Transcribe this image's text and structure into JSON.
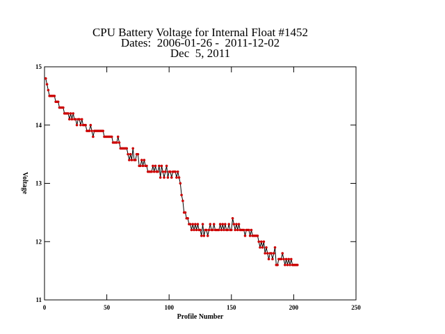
{
  "chart_data": {
    "type": "line",
    "title": [
      "CPU Battery Voltage for Internal Float #1452",
      "Dates:  2006-01-26 -  2011-12-02",
      "Dec  5, 2011"
    ],
    "x_label": "Profile Number",
    "y_label": "Voltage",
    "xlim": [
      0,
      250
    ],
    "xticks": [
      0,
      50,
      100,
      150,
      200,
      250
    ],
    "ylim": [
      11,
      15
    ],
    "yticks": [
      11,
      12,
      13,
      14,
      15
    ],
    "line_color": "#000000",
    "marker_color": "#cc0000",
    "x": [
      1,
      2,
      3,
      4,
      5,
      6,
      7,
      8,
      9,
      10,
      11,
      12,
      13,
      14,
      15,
      16,
      17,
      18,
      19,
      20,
      21,
      22,
      23,
      24,
      25,
      26,
      27,
      28,
      29,
      30,
      31,
      32,
      33,
      34,
      35,
      36,
      37,
      38,
      39,
      40,
      41,
      42,
      43,
      44,
      45,
      46,
      47,
      48,
      49,
      50,
      51,
      52,
      53,
      54,
      55,
      56,
      57,
      58,
      59,
      60,
      61,
      62,
      63,
      64,
      65,
      66,
      67,
      68,
      69,
      70,
      71,
      72,
      73,
      74,
      75,
      76,
      77,
      78,
      79,
      80,
      81,
      82,
      83,
      84,
      85,
      86,
      87,
      88,
      89,
      90,
      91,
      92,
      93,
      94,
      95,
      96,
      97,
      98,
      99,
      100,
      101,
      102,
      103,
      104,
      105,
      106,
      107,
      108,
      109,
      110,
      111,
      112,
      113,
      114,
      115,
      116,
      117,
      118,
      119,
      120,
      121,
      122,
      123,
      124,
      125,
      126,
      127,
      128,
      129,
      130,
      131,
      132,
      133,
      134,
      135,
      136,
      137,
      138,
      139,
      140,
      141,
      142,
      143,
      144,
      145,
      146,
      147,
      148,
      149,
      150,
      151,
      152,
      153,
      154,
      155,
      156,
      157,
      158,
      159,
      160,
      161,
      162,
      163,
      164,
      165,
      166,
      167,
      168,
      169,
      170,
      171,
      172,
      173,
      174,
      175,
      176,
      177,
      178,
      179,
      180,
      181,
      182,
      183,
      184,
      185,
      186,
      187,
      188,
      189,
      190,
      191,
      192,
      193,
      194,
      195,
      196,
      197,
      198,
      199,
      200,
      201,
      202,
      203
    ],
    "values": [
      14.8,
      14.7,
      14.6,
      14.5,
      14.5,
      14.5,
      14.5,
      14.5,
      14.4,
      14.4,
      14.4,
      14.3,
      14.3,
      14.3,
      14.3,
      14.2,
      14.2,
      14.2,
      14.2,
      14.1,
      14.2,
      14.1,
      14.2,
      14.1,
      14.1,
      14.0,
      14.1,
      14.1,
      14.0,
      14.1,
      14.0,
      14.0,
      14.0,
      13.9,
      13.9,
      13.9,
      14.0,
      13.9,
      13.8,
      13.9,
      13.9,
      13.9,
      13.9,
      13.9,
      13.9,
      13.9,
      13.9,
      13.8,
      13.8,
      13.8,
      13.8,
      13.8,
      13.8,
      13.8,
      13.7,
      13.7,
      13.7,
      13.7,
      13.8,
      13.7,
      13.6,
      13.6,
      13.6,
      13.6,
      13.6,
      13.6,
      13.5,
      13.4,
      13.5,
      13.4,
      13.6,
      13.4,
      13.4,
      13.5,
      13.5,
      13.3,
      13.3,
      13.4,
      13.3,
      13.4,
      13.3,
      13.3,
      13.2,
      13.2,
      13.2,
      13.2,
      13.3,
      13.2,
      13.3,
      13.2,
      13.2,
      13.3,
      13.1,
      13.3,
      13.2,
      13.1,
      13.2,
      13.3,
      13.1,
      13.2,
      13.2,
      13.1,
      13.2,
      13.2,
      13.2,
      13.1,
      13.2,
      13.1,
      13.0,
      12.8,
      12.7,
      12.5,
      12.5,
      12.4,
      12.4,
      12.3,
      12.3,
      12.2,
      12.3,
      12.2,
      12.3,
      12.2,
      12.3,
      12.2,
      12.2,
      12.1,
      12.3,
      12.1,
      12.2,
      12.2,
      12.1,
      12.2,
      12.3,
      12.2,
      12.2,
      12.3,
      12.2,
      12.2,
      12.2,
      12.2,
      12.3,
      12.2,
      12.3,
      12.2,
      12.3,
      12.2,
      12.2,
      12.3,
      12.2,
      12.2,
      12.4,
      12.3,
      12.2,
      12.3,
      12.2,
      12.3,
      12.2,
      12.2,
      12.2,
      12.2,
      12.1,
      12.2,
      12.2,
      12.2,
      12.1,
      12.2,
      12.1,
      12.1,
      12.1,
      12.1,
      12.1,
      12.0,
      11.9,
      12.0,
      11.9,
      12.0,
      11.8,
      11.9,
      11.8,
      11.7,
      11.8,
      11.8,
      11.7,
      11.8,
      11.9,
      11.6,
      11.6,
      11.7,
      11.7,
      11.7,
      11.8,
      11.7,
      11.6,
      11.7,
      11.6,
      11.7,
      11.6,
      11.7,
      11.6,
      11.6,
      11.6,
      11.6,
      11.6
    ]
  }
}
